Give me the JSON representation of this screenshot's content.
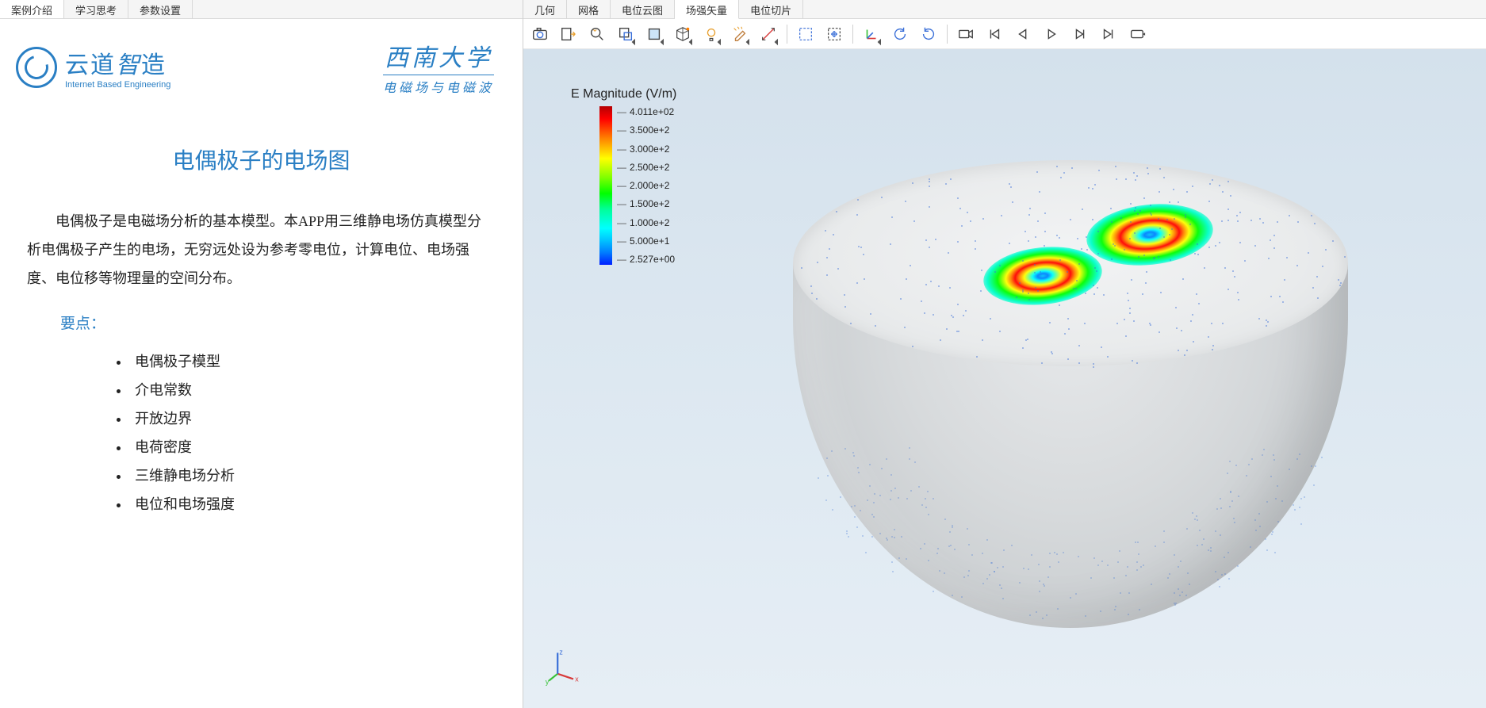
{
  "left_tabs": {
    "intro": "案例介绍",
    "study": "学习思考",
    "params": "参数设置",
    "active": 0
  },
  "logo_yd": {
    "cn_a": "云道",
    "cn_b": "智",
    "cn_c": "造",
    "en": "Internet Based Engineering"
  },
  "logo_swu": {
    "cn": "西南大学",
    "sub": "电磁场与电磁波"
  },
  "article": {
    "title": "电偶极子的电场图",
    "body": "电偶极子是电磁场分析的基本模型。本APP用三维静电场仿真模型分析电偶极子产生的电场，无穷远处设为参考零电位，计算电位、电场强度、电位移等物理量的空间分布。",
    "keypoints_label": "要点：",
    "keypoints": [
      "电偶极子模型",
      "介电常数",
      "开放边界",
      "电荷密度",
      "三维静电场分析",
      "电位和电场强度"
    ]
  },
  "right_tabs": {
    "items": [
      "几何",
      "网格",
      "电位云图",
      "场强矢量",
      "电位切片"
    ],
    "active": 3
  },
  "toolbar_icons": [
    "camera",
    "export",
    "zoom-fit",
    "zoom-window",
    "face",
    "cube",
    "bulb",
    "broom",
    "ruler",
    "sep",
    "select-rect",
    "select-move",
    "sep",
    "axes",
    "rotate-ccw",
    "rotate-cw",
    "sep",
    "video",
    "first",
    "prev",
    "play",
    "step",
    "last",
    "loop"
  ],
  "legend": {
    "title": "E Magnitude (V/m)",
    "ticks": [
      "4.011e+02",
      "3.500e+2",
      "3.000e+2",
      "2.500e+2",
      "2.000e+2",
      "1.500e+2",
      "1.000e+2",
      "5.000e+1",
      "2.527e+00"
    ],
    "colors_top_to_bottom": [
      "#b50003",
      "#ff0000",
      "#ff7f00",
      "#ffff00",
      "#7fff00",
      "#00ff00",
      "#00ff99",
      "#00ffff",
      "#00c0ff",
      "#0080ff",
      "#0020ff"
    ]
  },
  "triad": {
    "x_color": "#d83a3a",
    "y_color": "#3ac23a",
    "z_color": "#3a6fd8"
  },
  "viewport": {
    "bg_gradient": [
      "#d4e1ec",
      "#dde8f1",
      "#e6eef5"
    ],
    "hemisphere_color": "#e2e4e6",
    "ring_centers": [
      [
        375,
        186
      ],
      [
        510,
        134
      ]
    ],
    "ring_size": [
      150,
      72
    ],
    "scatter_color": "#3a6fd8",
    "scatter_count": 600
  }
}
